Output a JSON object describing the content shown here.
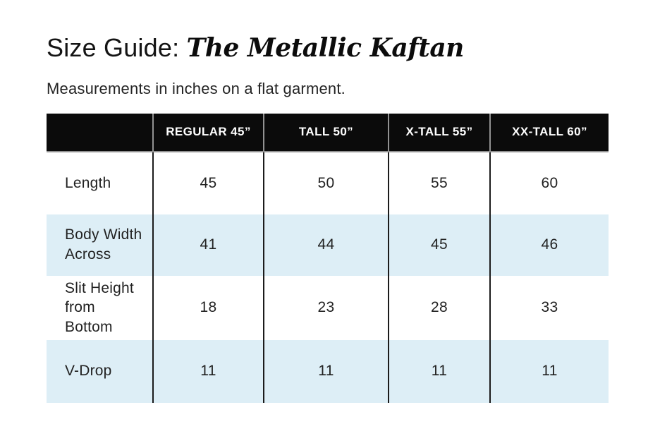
{
  "page": {
    "title_prefix": "Size Guide: ",
    "title_product": "The Metallic Kaftan",
    "subtitle": "Measurements in inches on a flat garment."
  },
  "size_table": {
    "corner_label": "",
    "columns": [
      {
        "label": "REGULAR 45”"
      },
      {
        "label": "TALL 50”"
      },
      {
        "label": "X-TALL 55”"
      },
      {
        "label": "XX-TALL 60”"
      }
    ],
    "rows": [
      {
        "label": "Length",
        "values": [
          "45",
          "50",
          "55",
          "60"
        ]
      },
      {
        "label": "Body Width Across",
        "values": [
          "41",
          "44",
          "45",
          "46"
        ]
      },
      {
        "label": "Slit Height from Bottom",
        "values": [
          "18",
          "23",
          "28",
          "33"
        ]
      },
      {
        "label": "V-Drop",
        "values": [
          "11",
          "11",
          "11",
          "11"
        ]
      }
    ],
    "colors": {
      "header_bg": "#0b0b0b",
      "header_text": "#ffffff",
      "stripe_bg": "#ddeef6",
      "column_divider": "#1b1b1b",
      "header_divider": "#929292",
      "body_text": "#222222"
    }
  }
}
